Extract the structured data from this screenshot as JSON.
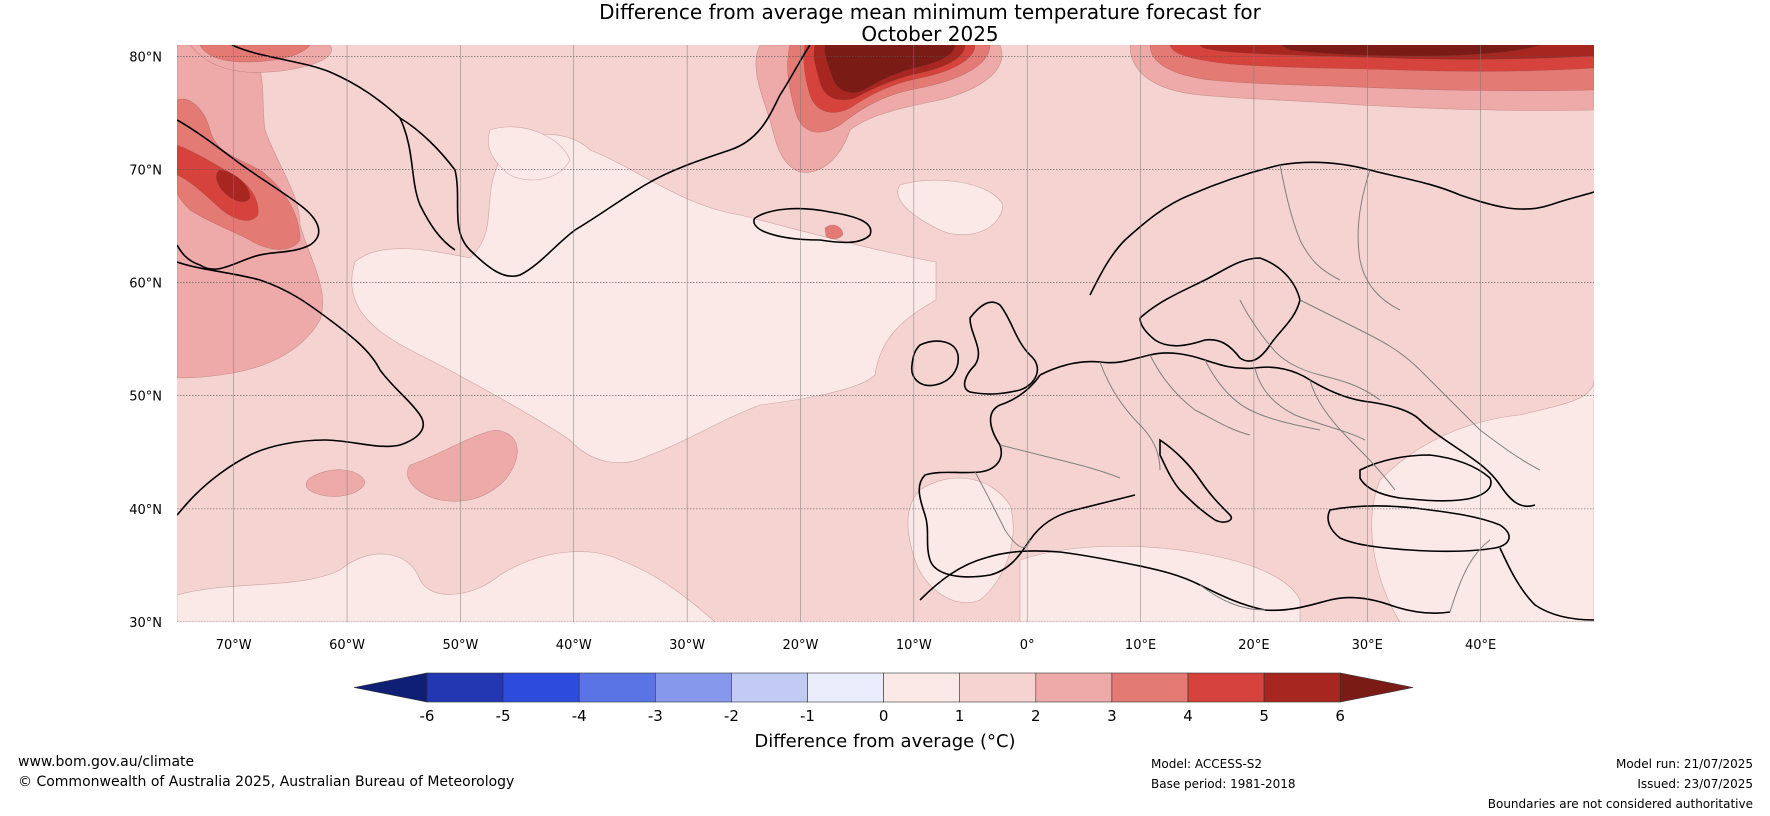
{
  "title": {
    "line1": "Difference from average mean minimum temperature forecast for",
    "line2": "October 2025"
  },
  "map": {
    "lat_labels": [
      "80°N",
      "70°N",
      "60°N",
      "50°N",
      "40°N",
      "30°N"
    ],
    "lon_labels": [
      "70°W",
      "60°W",
      "50°W",
      "40°W",
      "30°W",
      "20°W",
      "10°W",
      "0°",
      "10°E",
      "20°E",
      "30°E",
      "40°E"
    ],
    "extent": {
      "lon_min": -75,
      "lon_max": 50,
      "lat_min": 30,
      "lat_max": 81
    },
    "band_colors": {
      "0_1": "#fbe9e7",
      "1_2": "#f5d3d1",
      "2_3": "#eeaaa8",
      "3_4": "#e47a74",
      "4_5": "#d5433c",
      "5_6": "#a82620",
      "gt6": "#7b1b16"
    },
    "coastline_color": "#000000",
    "border_color": "#808080"
  },
  "colorbar": {
    "title": "Difference from average (°C)",
    "tick_labels": [
      "-6",
      "-5",
      "-4",
      "-3",
      "-2",
      "-1",
      "0",
      "1",
      "2",
      "3",
      "4",
      "5",
      "6"
    ],
    "colors": [
      "#0f1f75",
      "#2237b1",
      "#2d4bdd",
      "#5b74e5",
      "#8598eb",
      "#c1cbf3",
      "#e9edfc",
      "#fbe9e7",
      "#f5d3d1",
      "#eeaaa8",
      "#e47a74",
      "#d5433c",
      "#a82620",
      "#7b1b16"
    ]
  },
  "footer": {
    "website": "www.bom.gov.au/climate",
    "copyright": "© Commonwealth of Australia 2025, Australian Bureau of Meteorology",
    "model": "Model: ACCESS-S2",
    "base_period": "Base period: 1981-2018",
    "model_run": "Model run: 21/07/2025",
    "issued": "Issued: 23/07/2025",
    "disclaimer": "Boundaries are not considered authoritative"
  }
}
